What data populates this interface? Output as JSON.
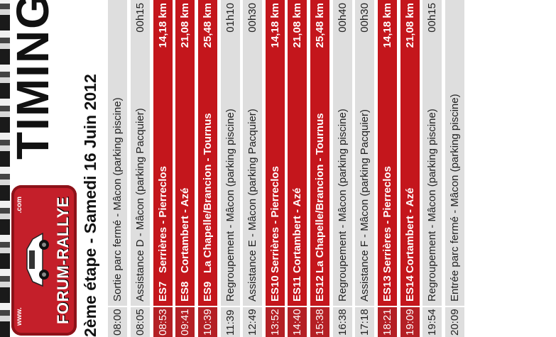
{
  "header": {
    "logo_www": "www.",
    "logo_com": ".com",
    "logo_brand": "FORUM-RALLYE",
    "title": "TIMING",
    "subtitle": "2ème étape - Samedi 16 Juin 2012"
  },
  "colors": {
    "accent_red": "#c4161c",
    "row_gray": "#dedede"
  },
  "rows": [
    {
      "time": "08:00",
      "code": "",
      "desc": "Sortie parc fermé - Mâcon (parking piscine)",
      "value": ""
    },
    {
      "time": "08:05",
      "code": "",
      "desc": "Assistance D - Mâcon (parking Pacquier)",
      "value": "00h15"
    },
    {
      "time": "08:53",
      "code": "ES7",
      "desc": "Serrières - Pierreclos",
      "value": "14,18 km"
    },
    {
      "time": "09:41",
      "code": "ES8",
      "desc": "Cortambert - Azé",
      "value": "21,08 km"
    },
    {
      "time": "10:39",
      "code": "ES9",
      "desc": "La Chapelle/Brancion - Tournus",
      "value": "25,48 km"
    },
    {
      "time": "11:39",
      "code": "",
      "desc": "Regroupement - Mâcon (parking piscine)",
      "value": "01h10"
    },
    {
      "time": "12:49",
      "code": "",
      "desc": "Assistance E - Mâcon (parking Pacquier)",
      "value": "00h30"
    },
    {
      "time": "13:52",
      "code": "ES10",
      "desc": "Serrières - Pierreclos",
      "value": "14,18 km"
    },
    {
      "time": "14:40",
      "code": "ES11",
      "desc": "Cortambert - Azé",
      "value": "21,08 km"
    },
    {
      "time": "15:38",
      "code": "ES12",
      "desc": "La Chapelle/Brancion - Tournus",
      "value": "25,48 km"
    },
    {
      "time": "16:38",
      "code": "",
      "desc": "Regroupement - Mâcon (parking piscine)",
      "value": "00h40"
    },
    {
      "time": "17:18",
      "code": "",
      "desc": "Assistance F - Mâcon (parking Pacquier)",
      "value": "00h30"
    },
    {
      "time": "18:21",
      "code": "ES13",
      "desc": "Serrières - Pierreclos",
      "value": "14,18 km"
    },
    {
      "time": "19:09",
      "code": "ES14",
      "desc": "Cortambert - Azé",
      "value": "21,08 km"
    },
    {
      "time": "19:54",
      "code": "",
      "desc": "Regroupement - Mâcon (parking piscine)",
      "value": "00h15"
    },
    {
      "time": "20:09",
      "code": "",
      "desc": "Entrée parc fermé - Mâcon (parking piscine)",
      "value": ""
    }
  ]
}
